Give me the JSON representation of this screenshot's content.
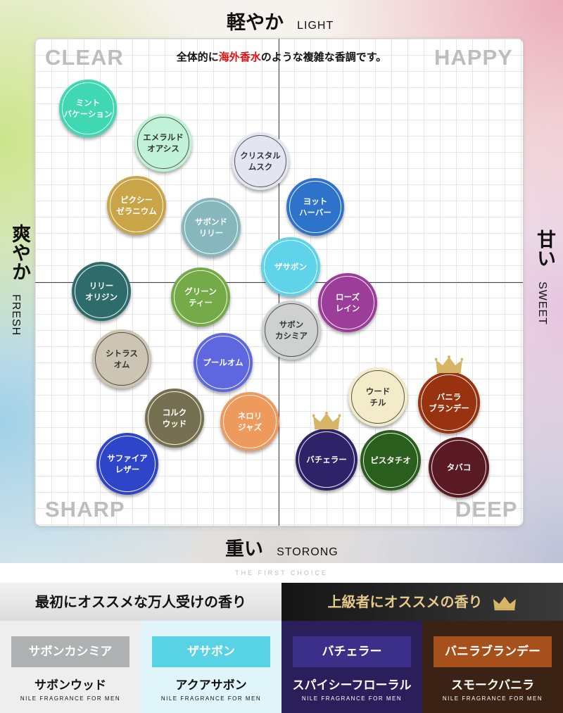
{
  "axes": {
    "top_jp": "軽やか",
    "top_en": "LIGHT",
    "bottom_jp": "重い",
    "bottom_en": "STORONG",
    "left_jp": "爽やか",
    "left_en": "FRESH",
    "right_jp": "甘い",
    "right_en": "SWEET"
  },
  "quadrants": {
    "tl": "CLEAR",
    "tr": "HAPPY",
    "bl": "SHARP",
    "br": "DEEP"
  },
  "note": {
    "pre": "全体的に",
    "highlight": "海外香水",
    "post": "のような複雑な香調です。"
  },
  "scents": [
    {
      "label": "ミント\nバケーション",
      "color": "#3fd8b2",
      "light": false
    },
    {
      "label": "エメラルド\nオアシス",
      "color": "#bff2d6",
      "light": true
    },
    {
      "label": "クリスタル\nムスク",
      "color": "#e3e6f1",
      "light": true
    },
    {
      "label": "ピクシー\nゼラニウム",
      "color": "#c9a548",
      "light": false
    },
    {
      "label": "サボンド\nリリー",
      "color": "#86b7bd",
      "light": false
    },
    {
      "label": "ヨット\nハーバー",
      "color": "#2d73cc",
      "light": false
    },
    {
      "label": "ザサボン",
      "color": "#5ed3ea",
      "light": false
    },
    {
      "label": "リリー\nオリジン",
      "color": "#2e6c6c",
      "light": false
    },
    {
      "label": "グリーン\nティー",
      "color": "#74ab48",
      "light": false
    },
    {
      "label": "ローズ\nレイン",
      "color": "#9c3d99",
      "light": false
    },
    {
      "label": "サボン\nカシミア",
      "color": "#cfd0d0",
      "light": true
    },
    {
      "label": "シトラス\nオム",
      "color": "#cdc5b3",
      "light": true
    },
    {
      "label": "プールオム",
      "color": "#5f67e0",
      "light": false
    },
    {
      "label": "ウード\nチル",
      "color": "#f4ecc8",
      "light": true
    },
    {
      "label": "バニラ\nブランデー",
      "color": "#99330f",
      "light": false
    },
    {
      "label": "コルク\nウッド",
      "color": "#75704f",
      "light": false
    },
    {
      "label": "ネロリ\nジャズ",
      "color": "#ee9a5c",
      "light": false
    },
    {
      "label": "サファイア\nレザー",
      "color": "#2e45c9",
      "light": false
    },
    {
      "label": "バチェラー",
      "color": "#2e2369",
      "light": false
    },
    {
      "label": "ピスタチオ",
      "color": "#2a5e1d",
      "light": false
    },
    {
      "label": "タバコ",
      "color": "#5a1a23",
      "light": false
    }
  ],
  "crown_color": "#d7b567",
  "tagline": "THE FIRST CHOICE",
  "banners": {
    "left": "最初にオススメな万人受けの香り",
    "right": "上級者にオススメの香り"
  },
  "cards": [
    {
      "chip": "サボンカシミア",
      "product": "サボンウッド",
      "brand": "NILE FRAGRANCE FOR MEN",
      "chip_color": "#aeb0b2",
      "bg": "#eeeeee",
      "text_color": "#111111"
    },
    {
      "chip": "ザサボン",
      "product": "アクアサボン",
      "brand": "NILE FRAGRANCE FOR MEN",
      "chip_color": "#58d3e6",
      "bg": "#dff5fa",
      "text_color": "#111111"
    },
    {
      "chip": "バチェラー",
      "product": "スパイシーフローラル",
      "brand": "NILE FRAGRANCE FOR MEN",
      "chip_color": "#3b2f8a",
      "bg": "#2a1f5a",
      "text_color": "#ffffff"
    },
    {
      "chip": "バニラブランデー",
      "product": "スモークバニラ",
      "brand": "NILE FRAGRANCE FOR MEN",
      "chip_color": "#a8501b",
      "bg": "#3a2214",
      "text_color": "#ffffff"
    }
  ]
}
